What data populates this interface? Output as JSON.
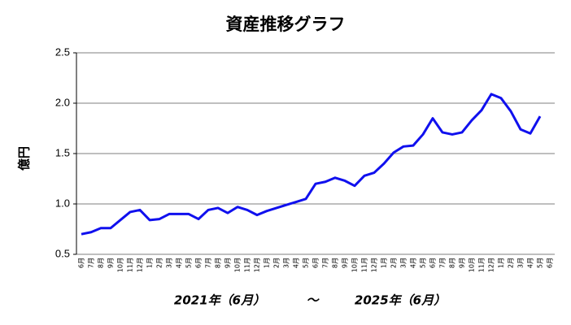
{
  "chart_data": {
    "type": "line",
    "title": "資産推移グラフ",
    "y_label": "億円",
    "annotations": [
      "2021年（6月）",
      "～",
      "2025年（6月）"
    ],
    "categories": [
      "6月",
      "7月",
      "8月",
      "9月",
      "10月",
      "11月",
      "12月",
      "1月",
      "2月",
      "3月",
      "4月",
      "5月",
      "6月",
      "7月",
      "8月",
      "9月",
      "10月",
      "11月",
      "12月",
      "1月",
      "2月",
      "3月",
      "4月",
      "5月",
      "6月",
      "7月",
      "8月",
      "9月",
      "10月",
      "11月",
      "12月",
      "1月",
      "2月",
      "3月",
      "4月",
      "5月",
      "6月",
      "7月",
      "8月",
      "9月",
      "10月",
      "11月",
      "12月",
      "1月",
      "2月",
      "3月",
      "4月",
      "5月",
      "6月"
    ],
    "series": [
      {
        "color": "#1010ee",
        "values": [
          0.7,
          0.72,
          0.76,
          0.76,
          0.84,
          0.92,
          0.94,
          0.84,
          0.85,
          0.9,
          0.9,
          0.9,
          0.85,
          0.94,
          0.96,
          0.91,
          0.97,
          0.94,
          0.89,
          0.93,
          0.96,
          0.99,
          1.02,
          1.05,
          1.2,
          1.22,
          1.26,
          1.23,
          1.18,
          1.28,
          1.31,
          1.4,
          1.51,
          1.57,
          1.58,
          1.69,
          1.85,
          1.71,
          1.69,
          1.71,
          1.83,
          1.93,
          2.09,
          2.05,
          1.92,
          1.74,
          1.7,
          1.87,
          null
        ]
      }
    ],
    "ylim": [
      0.5,
      2.5
    ],
    "yticks": [
      0.5,
      {
        "value": 1.0,
        "label": "1.0"
      },
      1.5,
      {
        "value": 2.0,
        "label": "2.0"
      },
      2.5
    ],
    "grid": true
  }
}
